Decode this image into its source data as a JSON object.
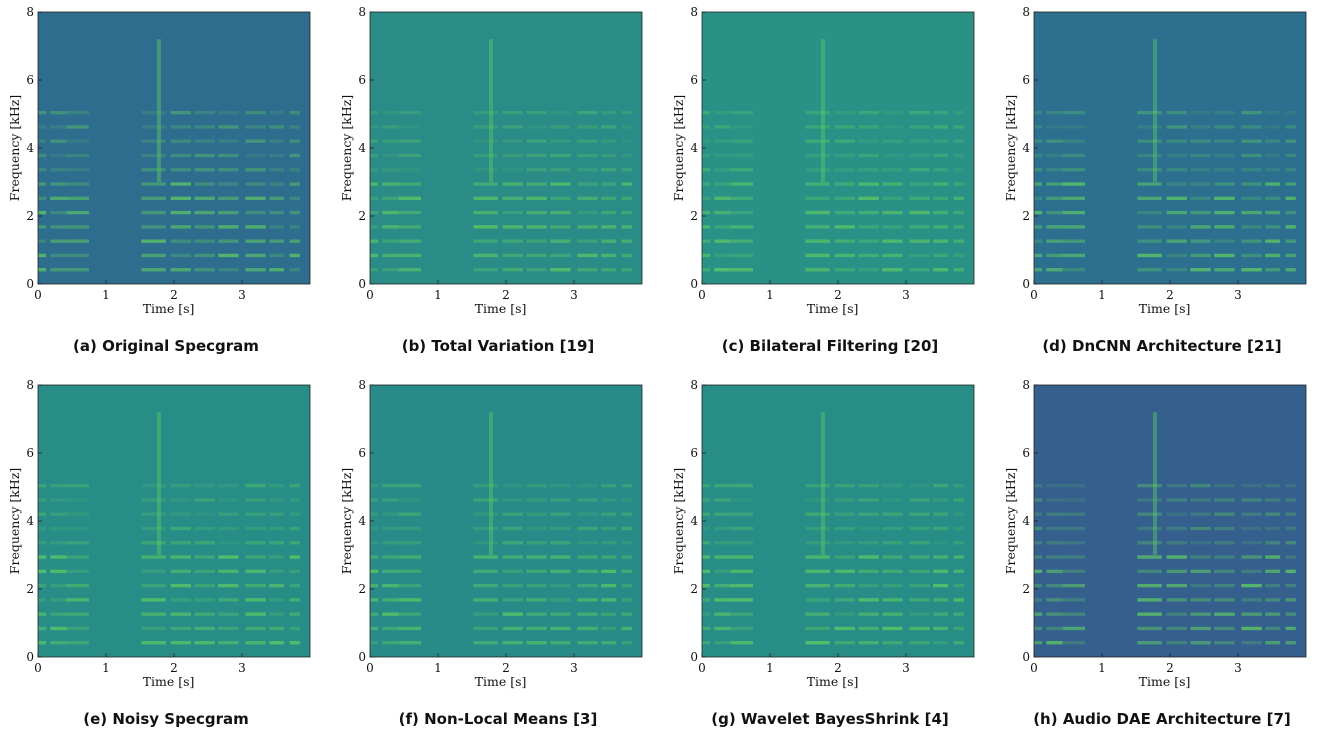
{
  "figure": {
    "xlabel": "Time [s]",
    "ylabel": "Frequency [kHz]",
    "xticks": [
      0,
      1,
      2,
      3
    ],
    "yticks": [
      0,
      2,
      4,
      6,
      8
    ],
    "xlim": [
      0,
      4
    ],
    "ylim": [
      0,
      8
    ],
    "colormap": [
      "#440154",
      "#3b528b",
      "#21908d",
      "#5dc963",
      "#fde725"
    ]
  },
  "chart_data": [
    {
      "type": "heatmap",
      "title": "(a) Original Specgram",
      "xlabel": "Time [s]",
      "ylabel": "Frequency [kHz]",
      "xlim": [
        0,
        4
      ],
      "ylim": [
        0,
        8
      ],
      "xticks": [
        0,
        1,
        2,
        3
      ],
      "yticks": [
        0,
        2,
        4,
        6,
        8
      ],
      "background_color": "#2f6d8e",
      "grid": false
    },
    {
      "type": "heatmap",
      "title": "(b) Total Variation [19]",
      "xlabel": "Time [s]",
      "ylabel": "Frequency [kHz]",
      "xlim": [
        0,
        4
      ],
      "ylim": [
        0,
        8
      ],
      "xticks": [
        0,
        1,
        2,
        3
      ],
      "yticks": [
        0,
        2,
        4,
        6,
        8
      ],
      "background_color": "#2a8b87",
      "grid": false
    },
    {
      "type": "heatmap",
      "title": "(c) Bilateral Filtering [20]",
      "xlabel": "Time [s]",
      "ylabel": "Frequency [kHz]",
      "xlim": [
        0,
        4
      ],
      "ylim": [
        0,
        8
      ],
      "xticks": [
        0,
        1,
        2,
        3
      ],
      "yticks": [
        0,
        2,
        4,
        6,
        8
      ],
      "background_color": "#2a9187",
      "grid": false
    },
    {
      "type": "heatmap",
      "title": "(d) DnCNN Architecture [21]",
      "xlabel": "Time [s]",
      "ylabel": "Frequency [kHz]",
      "xlim": [
        0,
        4
      ],
      "ylim": [
        0,
        8
      ],
      "xticks": [
        0,
        1,
        2,
        3
      ],
      "yticks": [
        0,
        2,
        4,
        6,
        8
      ],
      "background_color": "#2c6f8e",
      "grid": false
    },
    {
      "type": "heatmap",
      "title": "(e) Noisy Specgram",
      "xlabel": "Time [s]",
      "ylabel": "Frequency [kHz]",
      "xlim": [
        0,
        4
      ],
      "ylim": [
        0,
        8
      ],
      "xticks": [
        0,
        1,
        2,
        3
      ],
      "yticks": [
        0,
        2,
        4,
        6,
        8
      ],
      "background_color": "#288d87",
      "grid": false
    },
    {
      "type": "heatmap",
      "title": "(f) Non-Local Means [3]",
      "xlabel": "Time [s]",
      "ylabel": "Frequency [kHz]",
      "xlim": [
        0,
        4
      ],
      "ylim": [
        0,
        8
      ],
      "xticks": [
        0,
        1,
        2,
        3
      ],
      "yticks": [
        0,
        2,
        4,
        6,
        8
      ],
      "background_color": "#288b87",
      "grid": false
    },
    {
      "type": "heatmap",
      "title": "(g) Wavelet BayesShrink [4]",
      "xlabel": "Time [s]",
      "ylabel": "Frequency [kHz]",
      "xlim": [
        0,
        4
      ],
      "ylim": [
        0,
        8
      ],
      "xticks": [
        0,
        1,
        2,
        3
      ],
      "yticks": [
        0,
        2,
        4,
        6,
        8
      ],
      "background_color": "#288d87",
      "grid": false
    },
    {
      "type": "heatmap",
      "title": "(h) Audio DAE Architecture [7]",
      "xlabel": "Time [s]",
      "ylabel": "Frequency [kHz]",
      "xlim": [
        0,
        4
      ],
      "ylim": [
        0,
        8
      ],
      "xticks": [
        0,
        1,
        2,
        3
      ],
      "yticks": [
        0,
        2,
        4,
        6,
        8
      ],
      "background_color": "#355f8d",
      "grid": false
    }
  ]
}
